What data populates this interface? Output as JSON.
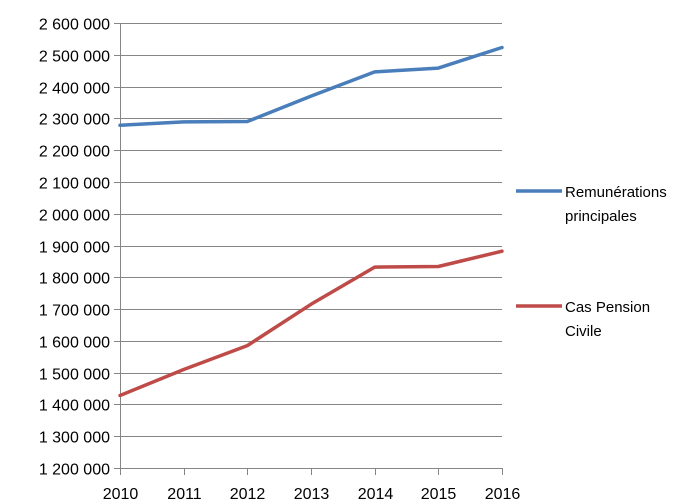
{
  "chart_data": {
    "type": "line",
    "title": "",
    "xlabel": "",
    "ylabel": "",
    "x": [
      2010,
      2011,
      2012,
      2013,
      2014,
      2015,
      2016
    ],
    "x_tick_labels": [
      "2010",
      "2011",
      "2012",
      "2013",
      "2014",
      "2015",
      "2016"
    ],
    "ylim": [
      1200000,
      2600000
    ],
    "y_ticks": [
      1200000,
      1300000,
      1400000,
      1500000,
      1600000,
      1700000,
      1800000,
      1900000,
      2000000,
      2100000,
      2200000,
      2300000,
      2400000,
      2500000,
      2600000
    ],
    "y_tick_labels": [
      "1 200 000",
      "1 300 000",
      "1 400 000",
      "1 500 000",
      "1 600 000",
      "1 700 000",
      "1 800 000",
      "1 900 000",
      "2 000 000",
      "2 100 000",
      "2 200 000",
      "2 300 000",
      "2 400 000",
      "2 500 000",
      "2 600 000"
    ],
    "grid": true,
    "legend_position": "right",
    "series": [
      {
        "name_lines": [
          "Remunérations",
          "principales"
        ],
        "color": "#4a7ebb",
        "values": [
          2278000,
          2289000,
          2290000,
          2370000,
          2446000,
          2458000,
          2523000
        ]
      },
      {
        "name_lines": [
          "Cas Pension",
          "Civile"
        ],
        "color": "#be4b48",
        "values": [
          1428000,
          1510000,
          1585000,
          1715000,
          1832000,
          1834000,
          1882000
        ]
      }
    ]
  }
}
